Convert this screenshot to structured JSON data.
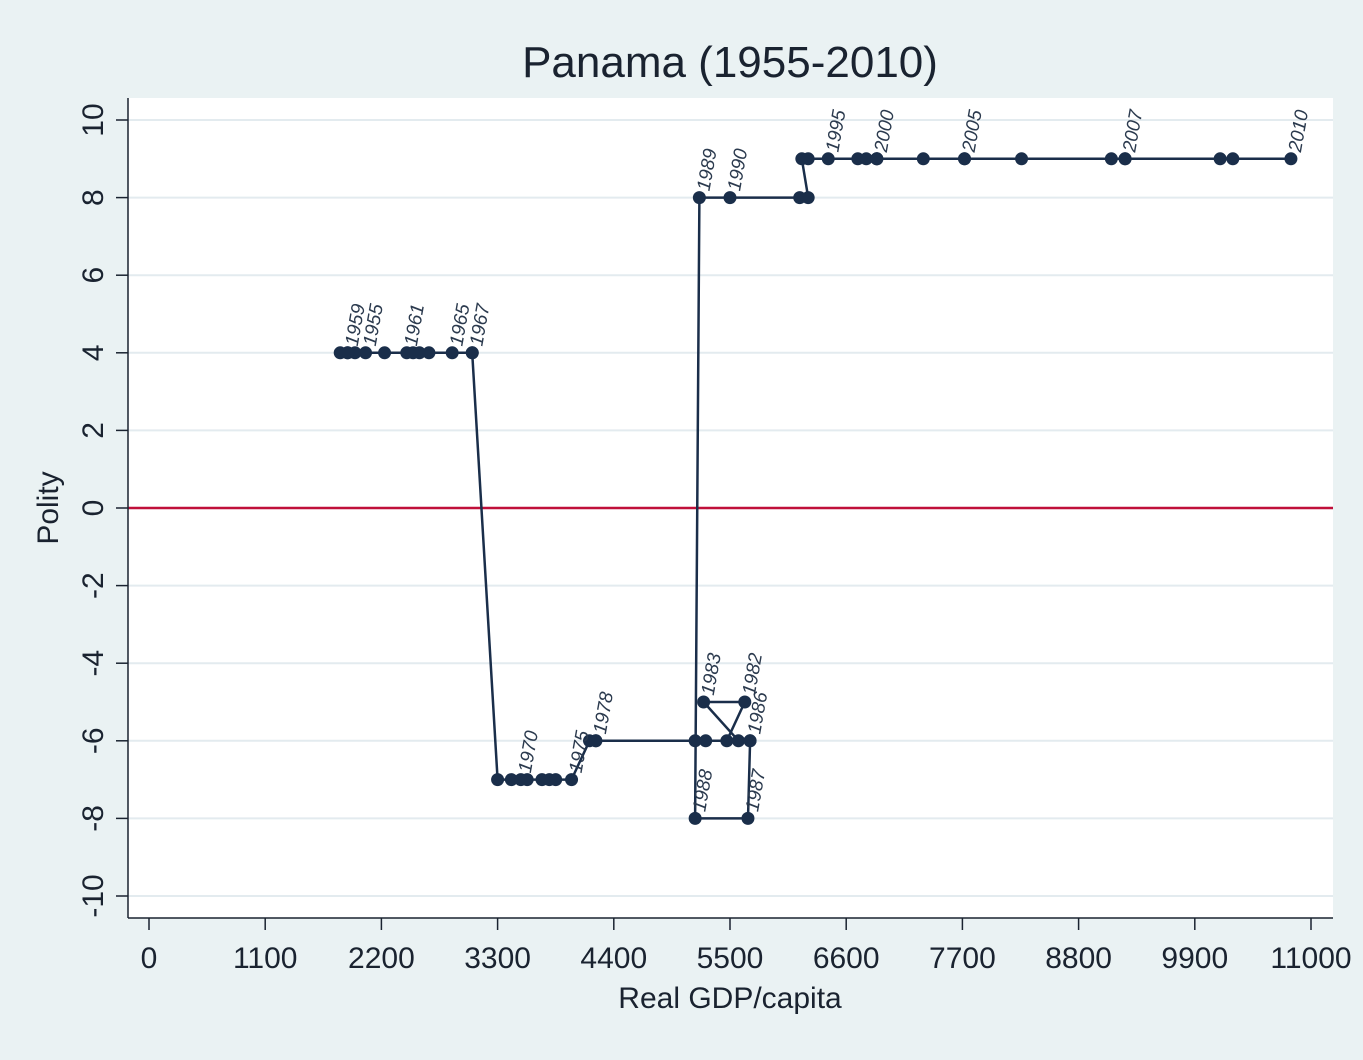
{
  "chart_data": {
    "type": "scatter",
    "title": "Panama (1955-2010)",
    "xlabel": "Real GDP/capita",
    "ylabel": "Polity",
    "xlim": [
      0,
      11000
    ],
    "ylim": [
      -10,
      10
    ],
    "x_ticks": [
      0,
      1100,
      2200,
      3300,
      4400,
      5500,
      6600,
      7700,
      8800,
      9900,
      11000
    ],
    "y_ticks": [
      -10,
      -8,
      -6,
      -4,
      -2,
      0,
      2,
      4,
      6,
      8,
      10
    ],
    "grid": true,
    "reference_line": {
      "y": 0,
      "color": "#c0103a"
    },
    "colors": {
      "series": "#1a2e4a",
      "background": "#eaf2f3",
      "plot": "#ffffff",
      "grid": "#e3ebef"
    },
    "points": [
      {
        "year": "1955",
        "x": 2050,
        "y": 4
      },
      {
        "year": "1956",
        "x": 1950,
        "y": 4
      },
      {
        "year": "1957",
        "x": 1880,
        "y": 4
      },
      {
        "year": "1958",
        "x": 1810,
        "y": 4
      },
      {
        "year": "1959",
        "x": 1880,
        "y": 4
      },
      {
        "year": "1960",
        "x": 2230,
        "y": 4
      },
      {
        "year": "1961",
        "x": 2440,
        "y": 4
      },
      {
        "year": "1962",
        "x": 2500,
        "y": 4
      },
      {
        "year": "1963",
        "x": 2560,
        "y": 4
      },
      {
        "year": "1964",
        "x": 2650,
        "y": 4
      },
      {
        "year": "1965",
        "x": 2870,
        "y": 4
      },
      {
        "year": "1966",
        "x": 3060,
        "y": 4
      },
      {
        "year": "1967",
        "x": 3060,
        "y": 4
      },
      {
        "year": "1968",
        "x": 3300,
        "y": -7
      },
      {
        "year": "1969",
        "x": 3430,
        "y": -7
      },
      {
        "year": "1970",
        "x": 3520,
        "y": -7
      },
      {
        "year": "1971",
        "x": 3580,
        "y": -7
      },
      {
        "year": "1972",
        "x": 3720,
        "y": -7
      },
      {
        "year": "1973",
        "x": 3790,
        "y": -7
      },
      {
        "year": "1974",
        "x": 3850,
        "y": -7
      },
      {
        "year": "1975",
        "x": 4000,
        "y": -7
      },
      {
        "year": "1976",
        "x": 4170,
        "y": -6
      },
      {
        "year": "1977",
        "x": 4230,
        "y": -6
      },
      {
        "year": "1978",
        "x": 4230,
        "y": -6
      },
      {
        "year": "1979",
        "x": 5170,
        "y": -6
      },
      {
        "year": "1980",
        "x": 5270,
        "y": -6
      },
      {
        "year": "1981",
        "x": 5470,
        "y": -6
      },
      {
        "year": "1982",
        "x": 5640,
        "y": -5
      },
      {
        "year": "1983",
        "x": 5250,
        "y": -5
      },
      {
        "year": "1984",
        "x": 5580,
        "y": -6
      },
      {
        "year": "1985",
        "x": 5690,
        "y": -6
      },
      {
        "year": "1986",
        "x": 5690,
        "y": -6
      },
      {
        "year": "1987",
        "x": 5670,
        "y": -8
      },
      {
        "year": "1988",
        "x": 5170,
        "y": -8
      },
      {
        "year": "1989",
        "x": 5210,
        "y": 8
      },
      {
        "year": "1990",
        "x": 5500,
        "y": 8
      },
      {
        "year": "1991",
        "x": 6160,
        "y": 8
      },
      {
        "year": "1992",
        "x": 6240,
        "y": 8
      },
      {
        "year": "1993",
        "x": 6180,
        "y": 9
      },
      {
        "year": "1994",
        "x": 6240,
        "y": 9
      },
      {
        "year": "1995",
        "x": 6430,
        "y": 9
      },
      {
        "year": "1996",
        "x": 6710,
        "y": 9
      },
      {
        "year": "1997",
        "x": 6790,
        "y": 9
      },
      {
        "year": "1998",
        "x": 6890,
        "y": 9
      },
      {
        "year": "1999",
        "x": 6890,
        "y": 9
      },
      {
        "year": "2000",
        "x": 6890,
        "y": 9
      },
      {
        "year": "2001",
        "x": 7330,
        "y": 9
      },
      {
        "year": "2002",
        "x": 7720,
        "y": 9
      },
      {
        "year": "2003",
        "x": 8260,
        "y": 9
      },
      {
        "year": "2004",
        "x": 9240,
        "y": 9
      },
      {
        "year": "2005",
        "x": 7720,
        "y": 9
      },
      {
        "year": "2006",
        "x": 9110,
        "y": 9
      },
      {
        "year": "2007",
        "x": 9240,
        "y": 9
      },
      {
        "year": "2008",
        "x": 10140,
        "y": 9
      },
      {
        "year": "2009",
        "x": 10260,
        "y": 9
      },
      {
        "year": "2010",
        "x": 10810,
        "y": 9
      }
    ],
    "visible_labels": [
      "1955",
      "1959",
      "1961",
      "1965",
      "1967",
      "1970",
      "1975",
      "1978",
      "1982",
      "1983",
      "1986",
      "1987",
      "1988",
      "1989",
      "1990",
      "1995",
      "2000",
      "2005",
      "2007",
      "2010"
    ]
  }
}
